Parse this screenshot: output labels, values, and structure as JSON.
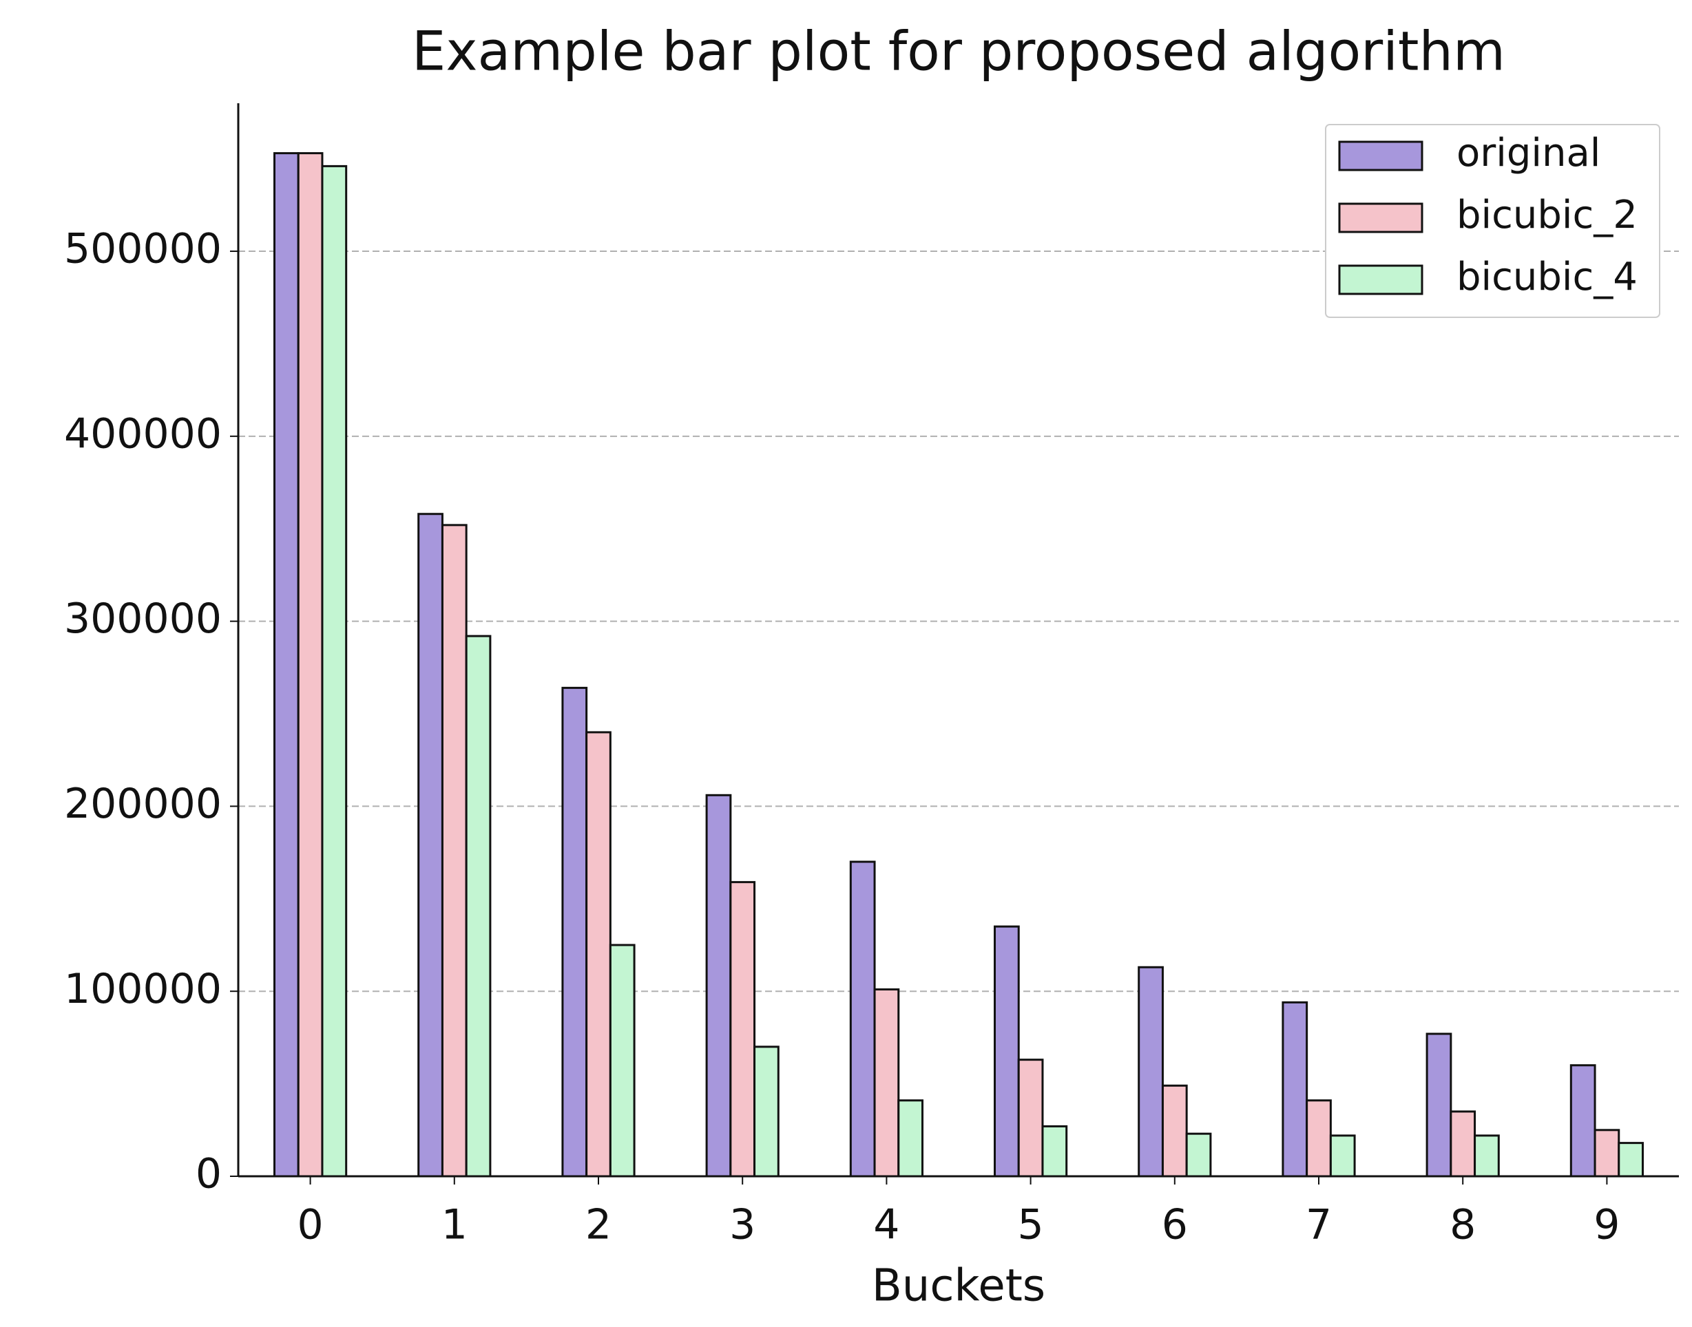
{
  "chart_data": {
    "type": "bar",
    "title": "Example bar plot for proposed algorithm",
    "x_label": "Buckets",
    "categories": [
      "0",
      "1",
      "2",
      "3",
      "4",
      "5",
      "6",
      "7",
      "8",
      "9"
    ],
    "series": [
      {
        "name": "original",
        "color": "#a797dc",
        "values": [
          553000,
          358000,
          264000,
          206000,
          170000,
          135000,
          113000,
          94000,
          77000,
          60000
        ]
      },
      {
        "name": "bicubic_2",
        "color": "#f5c3ca",
        "values": [
          553000,
          352000,
          240000,
          159000,
          101000,
          63000,
          49000,
          41000,
          35000,
          25000
        ]
      },
      {
        "name": "bicubic_4",
        "color": "#c3f5d2",
        "values": [
          546000,
          292000,
          125000,
          70000,
          41000,
          27000,
          23000,
          22000,
          22000,
          18000
        ]
      }
    ],
    "xlim": [
      -0.5,
      9.5
    ],
    "ylim": [
      0,
      580000
    ],
    "yticks": [
      0,
      100000,
      200000,
      300000,
      400000,
      500000
    ],
    "grid": true,
    "legend": "upper right"
  }
}
